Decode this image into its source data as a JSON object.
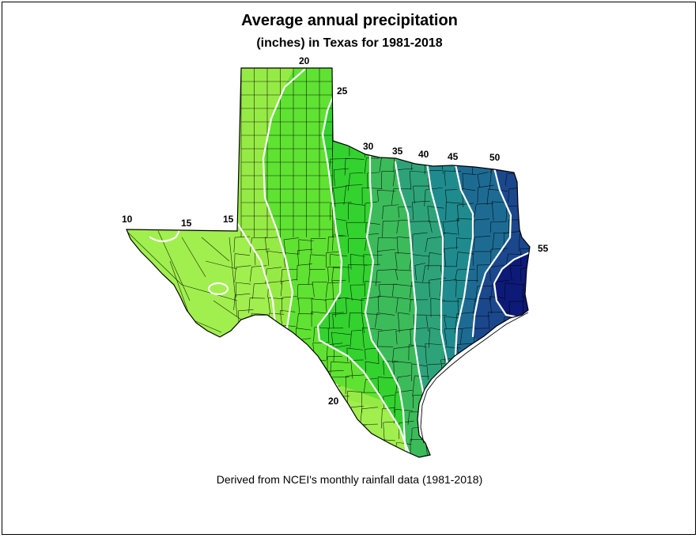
{
  "title": "Average annual precipitation",
  "subtitle": "(inches) in Texas for 1981-2018",
  "footer": "Derived from NCEI's monthly rainfall data (1981-2018)",
  "contour_labels": {
    "west_10": "10",
    "west_15a": "15",
    "west_15b": "15",
    "panhandle_20": "20",
    "panhandle_25": "25",
    "c30": "30",
    "c35": "35",
    "c40": "40",
    "c45": "45",
    "c50": "50",
    "c55": "55",
    "south_20": "20"
  },
  "colors": {
    "band_10_15": "#a0ef4e",
    "band_15_20": "#96ea45",
    "band_20_25": "#5fe232",
    "band_25_30": "#33d22f",
    "band_30_35": "#3cbb5a",
    "band_35_40": "#2ea37a",
    "band_40_45": "#1f8b8e",
    "band_45_50": "#1d6b93",
    "band_50_55": "#1b478d",
    "band_55_plus": "#0d1a78",
    "isohyet": "#ffffff",
    "boundary": "#000000"
  }
}
